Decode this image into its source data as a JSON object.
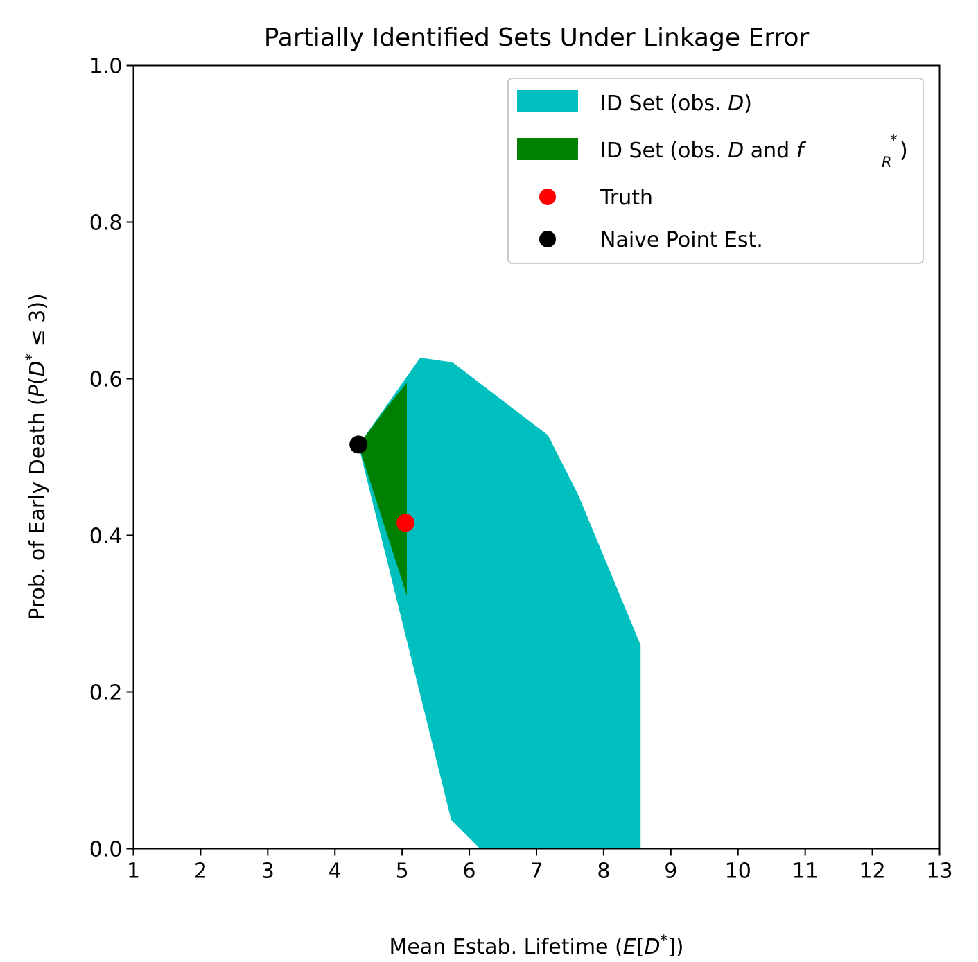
{
  "chart_data": {
    "type": "area",
    "title": "Partially Identified Sets Under Linkage Error",
    "xlabel": {
      "pre": "Mean Estab. Lifetime (",
      "var": "E",
      "mid": "[",
      "var2": "D",
      "sup": "*",
      "post": "])"
    },
    "ylabel": {
      "pre": "Prob. of Early Death (",
      "var": "P",
      "mid": "(",
      "var2": "D",
      "sup": "*",
      "post": " ≤ 3))"
    },
    "xlim": [
      1,
      13
    ],
    "ylim": [
      0.0,
      1.0
    ],
    "xticks": [
      "1",
      "2",
      "3",
      "4",
      "5",
      "6",
      "7",
      "8",
      "9",
      "10",
      "11",
      "12",
      "13"
    ],
    "yticks": [
      "0.0",
      "0.2",
      "0.4",
      "0.6",
      "0.8",
      "1.0"
    ],
    "grid": false,
    "legend_position": "top-right",
    "series": [
      {
        "name": "ID Set (obs. D)",
        "kind": "region",
        "color": "#00bfbf",
        "polygon": [
          [
            4.35,
            0.515
          ],
          [
            5.27,
            0.627
          ],
          [
            5.75,
            0.621
          ],
          [
            7.17,
            0.528
          ],
          [
            7.62,
            0.452
          ],
          [
            8.55,
            0.26
          ],
          [
            8.55,
            0.0
          ],
          [
            6.16,
            0.0
          ],
          [
            5.73,
            0.037
          ]
        ]
      },
      {
        "name": "ID Set (obs. D and f_R^*)",
        "kind": "region",
        "color": "#008000",
        "polygon": [
          [
            4.35,
            0.515
          ],
          [
            4.76,
            0.562
          ],
          [
            5.07,
            0.595
          ],
          [
            5.07,
            0.323
          ]
        ]
      },
      {
        "name": "Truth",
        "kind": "point",
        "color": "#ff0000",
        "x": 5.05,
        "y": 0.416
      },
      {
        "name": "Naive Point Est.",
        "kind": "point",
        "color": "#000000",
        "x": 4.35,
        "y": 0.516
      }
    ],
    "legend": {
      "entry1": {
        "pre": "ID Set (obs. ",
        "var": "D",
        "post": ")"
      },
      "entry2": {
        "pre": "ID Set (obs. ",
        "var": "D",
        "mid": " and ",
        "var2": "f",
        "sup": "*",
        "sub": "R",
        "post": ")"
      },
      "entry3": "Truth",
      "entry4": "Naive Point Est."
    }
  }
}
